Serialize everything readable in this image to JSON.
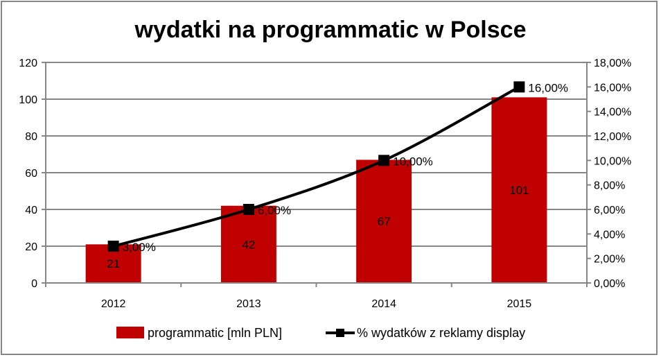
{
  "chart_data": {
    "type": "bar+line",
    "title": "wydatki na programmatic w Polsce",
    "categories": [
      "2012",
      "2013",
      "2014",
      "2015"
    ],
    "series": [
      {
        "name": "programmatic [mln PLN]",
        "type": "bar",
        "axis": "left",
        "values": [
          21,
          42,
          67,
          101
        ],
        "labels": [
          "21",
          "42",
          "67",
          "101"
        ],
        "color": "#c00000"
      },
      {
        "name": "% wydatków z reklamy display",
        "type": "line",
        "axis": "right",
        "values": [
          3,
          6,
          10,
          16
        ],
        "labels": [
          "3,00%",
          "6,00%",
          "10,00%",
          "16,00%"
        ],
        "color": "#000000",
        "marker": "square"
      }
    ],
    "y_left": {
      "range": [
        0,
        120
      ],
      "ticks": [
        "0",
        "20",
        "40",
        "60",
        "80",
        "100",
        "120"
      ]
    },
    "y_right": {
      "range": [
        0,
        18
      ],
      "ticks": [
        "0,00%",
        "2,00%",
        "4,00%",
        "6,00%",
        "8,00%",
        "10,00%",
        "12,00%",
        "14,00%",
        "16,00%",
        "18,00%"
      ]
    },
    "grid": true,
    "legend": "bottom"
  }
}
